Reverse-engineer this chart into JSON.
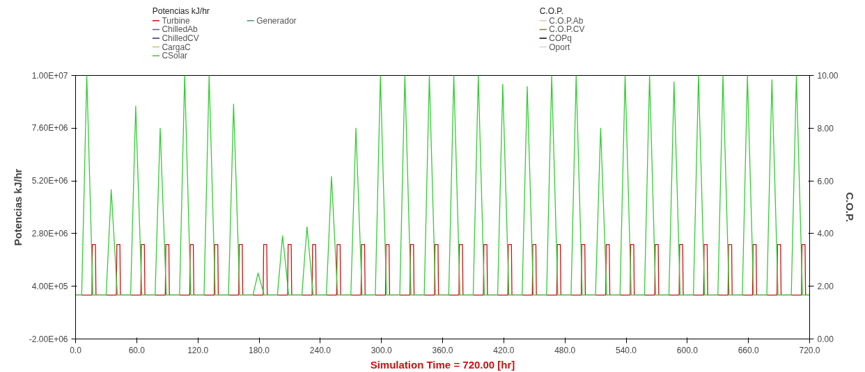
{
  "chart_data": {
    "type": "line",
    "xlabel": "Simulation Time = 720.00 [hr]",
    "ylabel": "Potencias kJ/hr",
    "y2label": "C.O.P.",
    "legend_title": "Potencias kJ/hr",
    "annotations": [
      "C.O.P."
    ],
    "legend": "top",
    "grid": false,
    "line_style": "solid",
    "marker": "none",
    "xlim": [
      0,
      720
    ],
    "xticks": [
      {
        "value": 0,
        "label": "0.0"
      },
      {
        "value": 60,
        "label": "60.0"
      },
      {
        "value": 120,
        "label": "120.0"
      },
      {
        "value": 180,
        "label": "180.0"
      },
      {
        "value": 240,
        "label": "240.0"
      },
      {
        "value": 300,
        "label": "300.0"
      },
      {
        "value": 360,
        "label": "360.0"
      },
      {
        "value": 420,
        "label": "420.0"
      },
      {
        "value": 480,
        "label": "480.0"
      },
      {
        "value": 540,
        "label": "540.0"
      },
      {
        "value": 600,
        "label": "600.0"
      },
      {
        "value": 660,
        "label": "660.0"
      },
      {
        "value": 720,
        "label": "720.0"
      }
    ],
    "ylim": [
      -2000000,
      10000000
    ],
    "yticks": [
      {
        "value": -2000000,
        "label": "-2.00E+06"
      },
      {
        "value": 400000,
        "label": "4.00E+05"
      },
      {
        "value": 2800000,
        "label": "2.80E+06"
      },
      {
        "value": 5200000,
        "label": "5.20E+06"
      },
      {
        "value": 7600000,
        "label": "7.60E+06"
      },
      {
        "value": 10000000,
        "label": "1.00E+07"
      }
    ],
    "y2lim": [
      0,
      10
    ],
    "y2ticks": [
      {
        "value": 0,
        "label": "0.00"
      },
      {
        "value": 2,
        "label": "2.00"
      },
      {
        "value": 4,
        "label": "4.00"
      },
      {
        "value": 6,
        "label": "6.00"
      },
      {
        "value": 8,
        "label": "8.00"
      },
      {
        "value": 10,
        "label": "10.00"
      }
    ],
    "series": [
      {
        "name": "Turbine",
        "color": "#cc1111",
        "x": [
          0,
          16,
          16.5,
          19.5,
          20,
          40,
          40.5,
          43.5,
          44,
          64,
          64.5,
          67.5,
          68,
          88,
          88.5,
          91.5,
          92,
          112,
          112.5,
          115.5,
          116,
          136,
          136.5,
          139.5,
          140,
          160,
          160.5,
          163.5,
          164,
          184,
          184.5,
          187.5,
          188,
          208,
          208.5,
          211.5,
          212,
          232,
          232.5,
          235.5,
          236,
          256,
          256.5,
          259.5,
          260,
          280,
          280.5,
          283.5,
          284,
          304,
          304.5,
          307.5,
          308,
          328,
          328.5,
          331.5,
          332,
          352,
          352.5,
          355.5,
          356,
          376,
          376.5,
          379.5,
          380,
          400,
          400.5,
          403.5,
          404,
          424,
          424.5,
          427.5,
          428,
          448,
          448.5,
          451.5,
          452,
          472,
          472.5,
          475.5,
          476,
          496,
          496.5,
          499.5,
          500,
          520,
          520.5,
          523.5,
          524,
          544,
          544.5,
          547.5,
          548,
          568,
          568.5,
          571.5,
          572,
          592,
          592.5,
          595.5,
          596,
          616,
          616.5,
          619.5,
          620,
          640,
          640.5,
          643.5,
          644,
          664,
          664.5,
          667.5,
          668,
          688,
          688.5,
          691.5,
          692,
          712,
          712.5,
          715.5,
          716,
          720
        ],
        "values": [
          0,
          0,
          2300000,
          2300000,
          0,
          0,
          2300000,
          2300000,
          0,
          0,
          2300000,
          2300000,
          0,
          0,
          2300000,
          2300000,
          0,
          0,
          2300000,
          2300000,
          0,
          0,
          2300000,
          2300000,
          0,
          0,
          2300000,
          2300000,
          0,
          0,
          2300000,
          2300000,
          0,
          0,
          2300000,
          2300000,
          0,
          0,
          2300000,
          2300000,
          0,
          0,
          2300000,
          2300000,
          0,
          0,
          2300000,
          2300000,
          0,
          0,
          2300000,
          2300000,
          0,
          0,
          2300000,
          2300000,
          0,
          0,
          2300000,
          2300000,
          0,
          0,
          2300000,
          2300000,
          0,
          0,
          2300000,
          2300000,
          0,
          0,
          2300000,
          2300000,
          0,
          0,
          2300000,
          2300000,
          0,
          0,
          2300000,
          2300000,
          0,
          0,
          2300000,
          2300000,
          0,
          0,
          2300000,
          2300000,
          0,
          0,
          2300000,
          2300000,
          0,
          0,
          2300000,
          2300000,
          0,
          0,
          2300000,
          2300000,
          0,
          0,
          2300000,
          2300000,
          0,
          0,
          2300000,
          2300000,
          0,
          0,
          2300000,
          2300000,
          0,
          0,
          2300000,
          2300000,
          0,
          0,
          2300000,
          2300000,
          0,
          0
        ]
      },
      {
        "name": "ChilledAb",
        "color": "#6a5a8c"
      },
      {
        "name": "ChilledCV",
        "color": "#3a2a6a"
      },
      {
        "name": "CargaC",
        "color": "#c8c860"
      },
      {
        "name": "CSolar",
        "color": "#33cc33",
        "x": [
          0,
          6,
          9,
          11,
          14,
          17,
          30,
          33,
          35,
          38,
          41,
          54,
          57,
          59,
          62,
          65,
          78,
          81,
          83,
          86,
          89,
          102,
          105,
          107,
          110,
          113,
          126,
          129,
          131,
          134,
          137,
          150,
          153,
          155,
          158,
          161,
          174,
          177,
          179,
          182,
          185,
          198,
          201,
          203,
          206,
          209,
          222,
          225,
          227,
          230,
          233,
          246,
          249,
          251,
          254,
          257,
          270,
          273,
          275,
          278,
          281,
          294,
          297,
          299,
          302,
          305,
          318,
          321,
          323,
          326,
          329,
          342,
          345,
          347,
          350,
          353,
          366,
          369,
          371,
          374,
          377,
          390,
          393,
          395,
          398,
          401,
          414,
          417,
          419,
          422,
          425,
          438,
          441,
          443,
          446,
          449,
          462,
          465,
          467,
          470,
          473,
          486,
          489,
          491,
          494,
          497,
          510,
          513,
          515,
          518,
          521,
          534,
          537,
          539,
          542,
          545,
          558,
          561,
          563,
          566,
          569,
          582,
          585,
          587,
          590,
          593,
          606,
          609,
          611,
          614,
          617,
          630,
          633,
          635,
          638,
          641,
          654,
          657,
          659,
          662,
          665,
          678,
          681,
          683,
          686,
          689,
          702,
          705,
          707,
          710,
          713,
          720
        ],
        "values": [
          0,
          0,
          6000000,
          10000000,
          5000000,
          0,
          0,
          2900000,
          4800000,
          2400000,
          0,
          0,
          5200000,
          8600000,
          4300000,
          0,
          0,
          4600000,
          7600000,
          3800000,
          0,
          0,
          6000000,
          10000000,
          5000000,
          0,
          0,
          6000000,
          10000000,
          5000000,
          0,
          0,
          5200000,
          8700000,
          4400000,
          0,
          0,
          600000,
          1000000,
          500000,
          0,
          0,
          1600000,
          2700000,
          1400000,
          0,
          0,
          1900000,
          3100000,
          1600000,
          0,
          0,
          3200000,
          5400000,
          2700000,
          0,
          0,
          4600000,
          7600000,
          3800000,
          0,
          0,
          6000000,
          10000000,
          5000000,
          0,
          0,
          6000000,
          10000000,
          5000000,
          0,
          0,
          6000000,
          10000000,
          5000000,
          0,
          0,
          6000000,
          10000000,
          5000000,
          0,
          0,
          6000000,
          10000000,
          5000000,
          0,
          0,
          5800000,
          9600000,
          4800000,
          0,
          0,
          5700000,
          9500000,
          4800000,
          0,
          0,
          6000000,
          10000000,
          5000000,
          0,
          0,
          6000000,
          10000000,
          5000000,
          0,
          0,
          4600000,
          7600000,
          3800000,
          0,
          0,
          6000000,
          10000000,
          5000000,
          0,
          0,
          6000000,
          10000000,
          5000000,
          0,
          0,
          5800000,
          9700000,
          4900000,
          0,
          0,
          6000000,
          10000000,
          5000000,
          0,
          0,
          6000000,
          10000000,
          5000000,
          0,
          0,
          6000000,
          10000000,
          5000000,
          0,
          0,
          5900000,
          9800000,
          4900000,
          0,
          0,
          6000000,
          10000000,
          5000000,
          0,
          0
        ]
      },
      {
        "name": "Generador",
        "color": "#4a9a7a"
      },
      {
        "name": "C.O.P.Ab",
        "color": "#f0c8a0",
        "axis": "y2"
      },
      {
        "name": "C.O.P.CV",
        "color": "#8a7a3a",
        "axis": "y2"
      },
      {
        "name": "COPq",
        "color": "#000000",
        "axis": "y2"
      },
      {
        "name": "Oport",
        "color": "#c8e0c8",
        "axis": "y2"
      }
    ]
  }
}
